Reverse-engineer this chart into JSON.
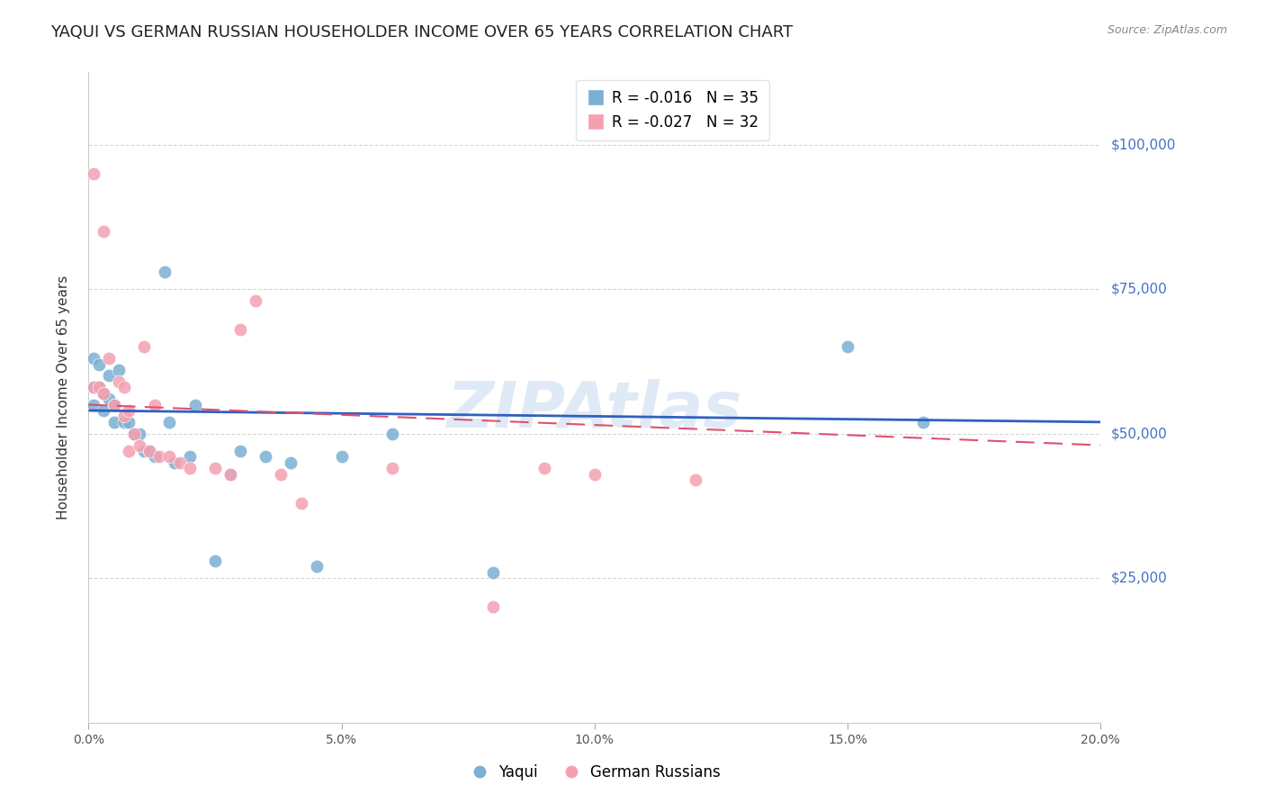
{
  "title": "YAQUI VS GERMAN RUSSIAN HOUSEHOLDER INCOME OVER 65 YEARS CORRELATION CHART",
  "source": "Source: ZipAtlas.com",
  "ylabel": "Householder Income Over 65 years",
  "yaqui_R": -0.016,
  "yaqui_N": 35,
  "gr_R": -0.027,
  "gr_N": 32,
  "xlim": [
    0.0,
    0.2
  ],
  "ylim": [
    0,
    112500
  ],
  "yticks": [
    0,
    25000,
    50000,
    75000,
    100000
  ],
  "xticks": [
    0.0,
    0.05,
    0.1,
    0.15,
    0.2
  ],
  "xtick_labels": [
    "0.0%",
    "5.0%",
    "10.0%",
    "15.0%",
    "20.0%"
  ],
  "yaqui_color": "#7bafd4",
  "gr_color": "#f4a0b0",
  "trend_yaqui_color": "#3060c0",
  "trend_gr_color": "#e05070",
  "background_color": "#ffffff",
  "watermark": "ZIPAtlas",
  "watermark_color": "#c8d8f0",
  "yaqui_x": [
    0.001,
    0.001,
    0.001,
    0.002,
    0.002,
    0.003,
    0.003,
    0.004,
    0.004,
    0.005,
    0.005,
    0.006,
    0.007,
    0.008,
    0.009,
    0.01,
    0.011,
    0.012,
    0.013,
    0.015,
    0.016,
    0.017,
    0.02,
    0.021,
    0.025,
    0.028,
    0.03,
    0.035,
    0.04,
    0.045,
    0.05,
    0.06,
    0.08,
    0.15,
    0.165
  ],
  "yaqui_y": [
    63000,
    58000,
    55000,
    62000,
    58000,
    57000,
    54000,
    56000,
    60000,
    55000,
    52000,
    61000,
    52000,
    52000,
    50000,
    50000,
    47000,
    47000,
    46000,
    78000,
    52000,
    45000,
    46000,
    55000,
    28000,
    43000,
    47000,
    46000,
    45000,
    27000,
    46000,
    50000,
    26000,
    65000,
    52000
  ],
  "gr_x": [
    0.001,
    0.001,
    0.002,
    0.003,
    0.003,
    0.004,
    0.005,
    0.006,
    0.007,
    0.007,
    0.008,
    0.008,
    0.009,
    0.01,
    0.011,
    0.012,
    0.013,
    0.014,
    0.016,
    0.018,
    0.02,
    0.025,
    0.028,
    0.03,
    0.033,
    0.038,
    0.042,
    0.06,
    0.08,
    0.09,
    0.1,
    0.12
  ],
  "gr_y": [
    95000,
    58000,
    58000,
    57000,
    85000,
    63000,
    55000,
    59000,
    58000,
    53000,
    54000,
    47000,
    50000,
    48000,
    65000,
    47000,
    55000,
    46000,
    46000,
    45000,
    44000,
    44000,
    43000,
    68000,
    73000,
    43000,
    38000,
    44000,
    20000,
    44000,
    43000,
    42000
  ],
  "trend_yaqui_x0": 0.0,
  "trend_yaqui_y0": 54000,
  "trend_yaqui_x1": 0.2,
  "trend_yaqui_y1": 52000,
  "trend_gr_x0": 0.0,
  "trend_gr_y0": 55000,
  "trend_gr_x1": 0.2,
  "trend_gr_y1": 48000
}
